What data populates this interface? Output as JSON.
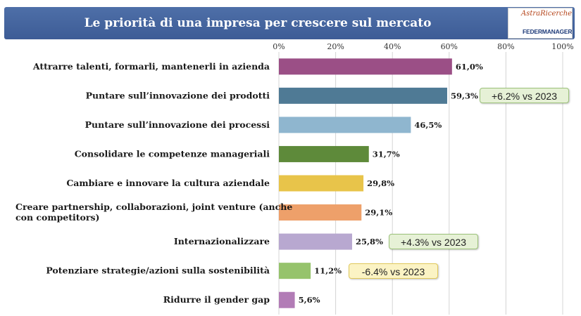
{
  "header": {
    "title": "Le priorità di una impresa per crescere sul mercato"
  },
  "logo": {
    "top_text": "AstraRicerche",
    "bottom_text": "FEDERMANAGER"
  },
  "chart_data": {
    "type": "bar",
    "orientation": "horizontal",
    "categories": [
      "Attrarre talenti, formarli, mantenerli in azienda",
      "Puntare sull’innovazione dei prodotti",
      "Puntare sull’innovazione dei processi",
      "Consolidare le competenze manageriali",
      "Cambiare e innovare la cultura aziendale",
      [
        "Creare partnership, collaborazioni, joint venture (anche",
        "con competitors)"
      ],
      "Internazionalizzare",
      "Potenziare strategie/azioni sulla sostenibilità",
      "Ridurre il gender gap"
    ],
    "values": [
      61.0,
      59.3,
      46.5,
      31.7,
      29.8,
      29.1,
      25.8,
      11.2,
      5.6
    ],
    "value_labels": [
      "61,0%",
      "59,3%",
      "46,5%",
      "31,7%",
      "29,8%",
      "29,1%",
      "25,8%",
      "11,2%",
      "5,6%"
    ],
    "bar_colors": [
      "#9b4f86",
      "#4f7a95",
      "#8fb6cf",
      "#5e8a3a",
      "#e8c44a",
      "#eea06a",
      "#b8a8d0",
      "#96c36c",
      "#b27cb6"
    ],
    "xlim": [
      0,
      100
    ],
    "x_ticks": [
      0,
      20,
      40,
      60,
      80,
      100
    ],
    "x_tick_labels": [
      "0%",
      "20%",
      "40%",
      "60%",
      "80%",
      "100%"
    ],
    "x_axis_position": "top",
    "grid": true,
    "annotations": [
      {
        "text": "+6.2% vs 2023",
        "category_index": 1,
        "bg": "#e6f1d6",
        "border": "#9cc27a"
      },
      {
        "text": "+4.3% vs 2023",
        "category_index": 6,
        "bg": "#e6f1d6",
        "border": "#9cc27a"
      },
      {
        "text": "-6.4% vs 2023",
        "category_index": 7,
        "bg": "#fbf3c4",
        "border": "#e2c95a"
      }
    ]
  }
}
